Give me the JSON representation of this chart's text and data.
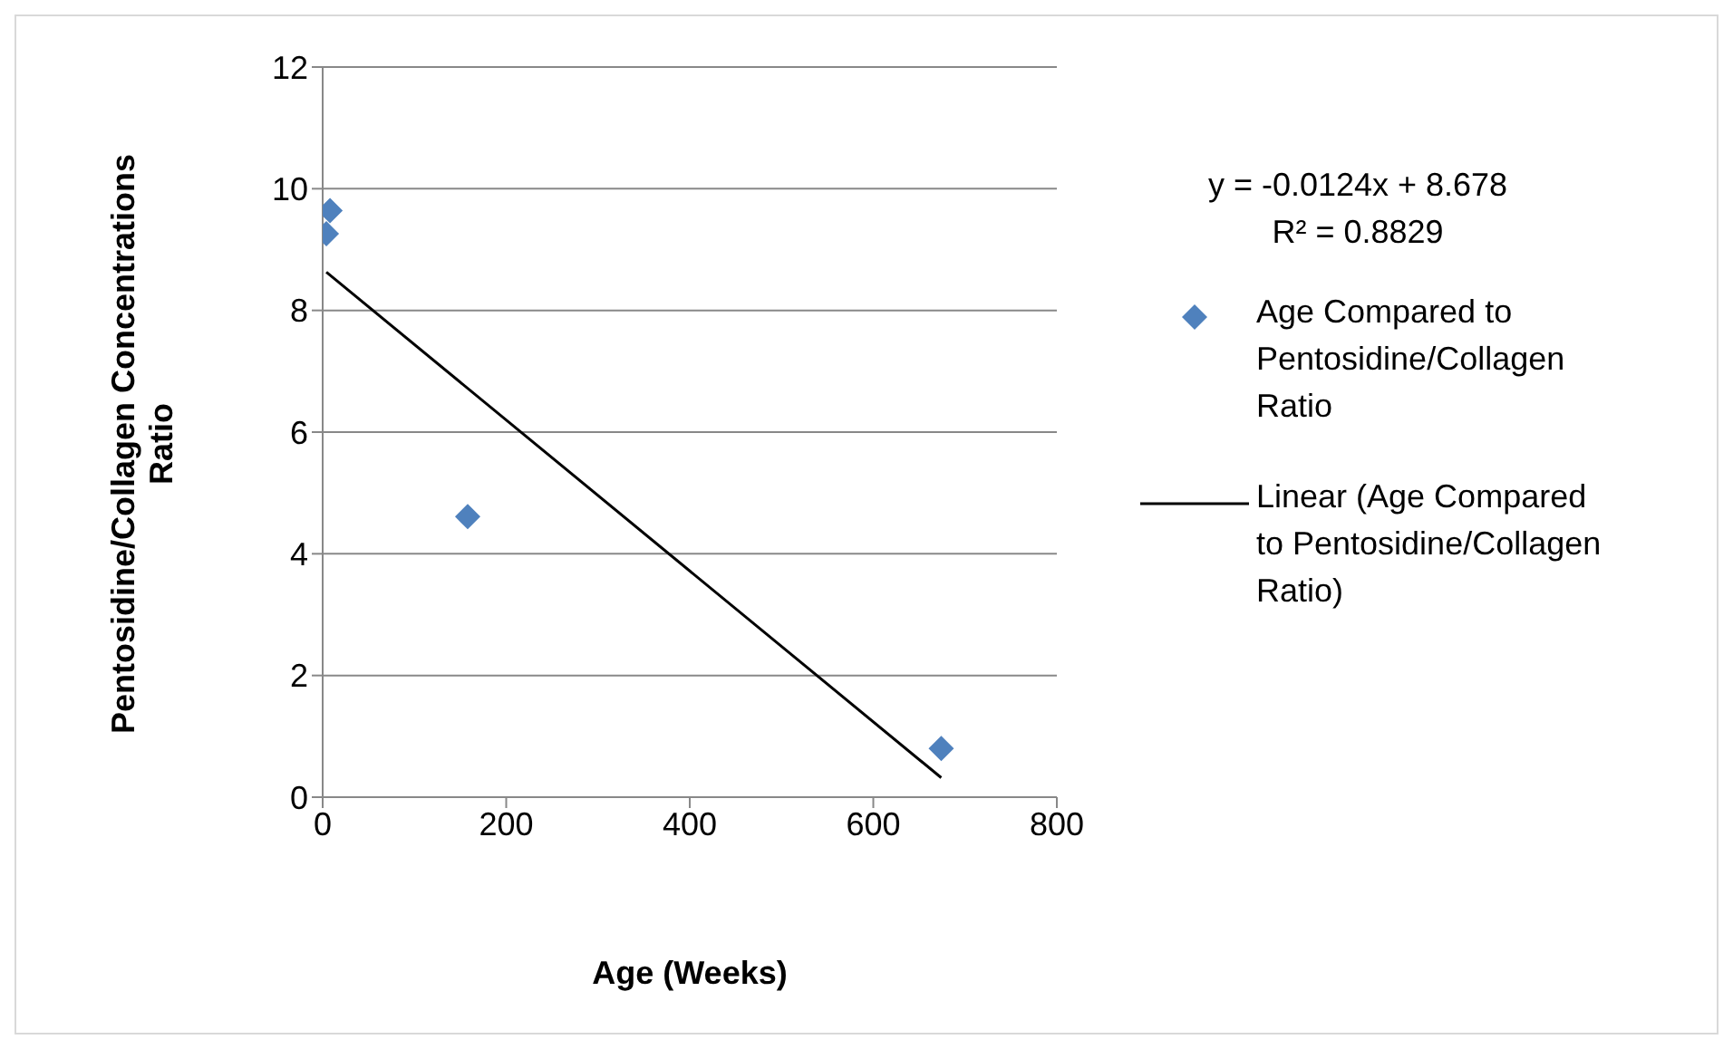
{
  "chart_data": {
    "type": "scatter",
    "xlabel": "Age (Weeks)",
    "ylabel": "Pentosidine/Collagen Concentrations Ratio",
    "annotations": [
      "y = -0.0124x + 8.678",
      "R² = 0.8829"
    ],
    "series": [
      {
        "name": "Age Compared to Pentosidine/Collagen Ratio",
        "color": "#4f81bd",
        "marker": "diamond",
        "x": [
          8,
          4,
          158,
          674
        ],
        "values": [
          9.64,
          9.26,
          4.61,
          0.8
        ]
      },
      {
        "name": "Linear (Age Compared to Pentosidine/Collagen Ratio)",
        "type": "line",
        "color": "#000000",
        "marker": "none",
        "x": [
          4,
          674
        ],
        "values": [
          8.63,
          0.32
        ]
      }
    ],
    "xlim": [
      0,
      800
    ],
    "xticks": [
      0,
      200,
      400,
      600,
      800
    ],
    "ylim": [
      0,
      12
    ],
    "yticks": [
      0,
      2,
      4,
      6,
      8,
      10,
      12
    ],
    "grid": "y",
    "legend": "right"
  }
}
